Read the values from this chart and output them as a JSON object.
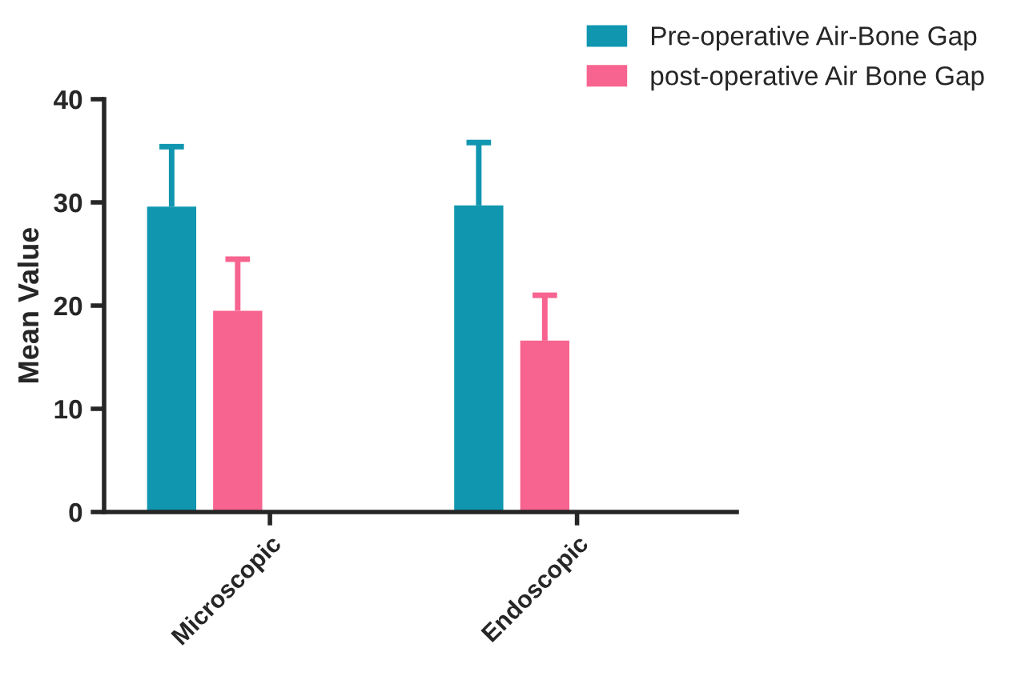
{
  "chart_data": {
    "type": "bar",
    "ylabel": "Mean Value",
    "categories": [
      "Microscopic",
      "Endoscopic"
    ],
    "series": [
      {
        "name": "Pre-operative Air-Bone Gap",
        "color": "#1196b0",
        "values": [
          29.6,
          29.7
        ],
        "errors": [
          [
            29.6,
            35.4
          ],
          [
            29.7,
            35.8
          ]
        ]
      },
      {
        "name": "post-operative Air Bone Gap",
        "color": "#f7648f",
        "values": [
          19.5,
          16.6
        ],
        "errors": [
          [
            19.5,
            24.5
          ],
          [
            16.6,
            21.0
          ]
        ]
      }
    ],
    "ylim": [
      0,
      40
    ],
    "yticks": [
      0,
      10,
      20,
      30,
      40
    ],
    "grid": false,
    "legend": "top right"
  }
}
